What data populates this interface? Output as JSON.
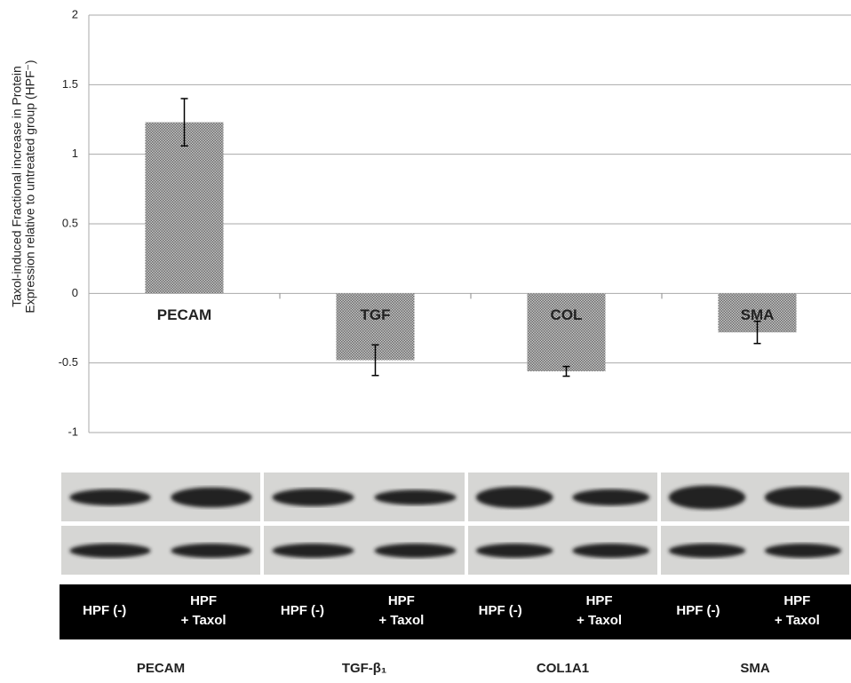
{
  "chart_data": {
    "type": "bar",
    "ylabel": [
      "Taxol-induced Fractional increase in Protein",
      "Expression relative to untreated group (HPF⁻)"
    ],
    "categories": [
      "PECAM",
      "TGF",
      "COL",
      "SMA"
    ],
    "values": [
      1.23,
      -0.48,
      -0.56,
      -0.28
    ],
    "errors": [
      0.17,
      0.11,
      0.035,
      0.08
    ],
    "color": "#9a9a9a",
    "ylim": [
      -1,
      2
    ],
    "yticks": [
      -1,
      -0.5,
      0,
      0.5,
      1,
      1.5,
      2
    ],
    "grid": true
  },
  "blot": {
    "lanes": [
      [
        "HPF (-)"
      ],
      [
        "HPF",
        "+ Taxol"
      ],
      [
        "HPF (-)"
      ],
      [
        "HPF",
        "+ Taxol"
      ],
      [
        "HPF (-)"
      ],
      [
        "HPF",
        "+ Taxol"
      ],
      [
        "HPF (-)"
      ],
      [
        "HPF",
        "+ Taxol"
      ]
    ],
    "proteins": [
      "PECAM",
      "TGF-β₁",
      "COL1A1",
      "SMA"
    ]
  }
}
